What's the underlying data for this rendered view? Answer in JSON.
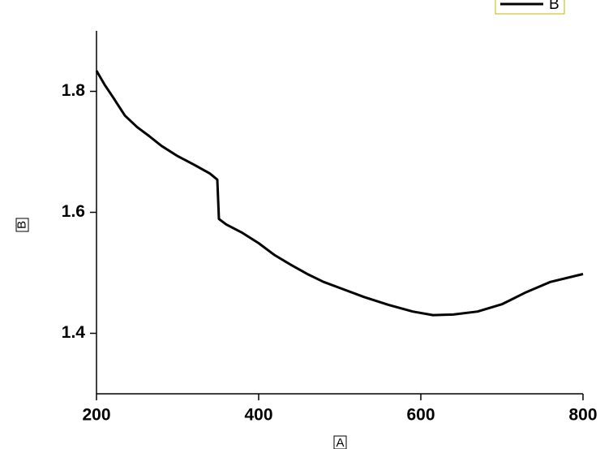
{
  "chart_data": {
    "type": "line",
    "x_label": "A",
    "y_label": "B",
    "x": [
      200,
      210,
      220,
      235,
      250,
      265,
      280,
      300,
      320,
      340,
      349,
      351,
      360,
      380,
      400,
      420,
      440,
      460,
      480,
      500,
      530,
      560,
      590,
      615,
      640,
      670,
      700,
      730,
      760,
      800
    ],
    "series": [
      {
        "name": "B",
        "color": "#000000",
        "values": [
          1.834,
          1.811,
          1.791,
          1.76,
          1.741,
          1.726,
          1.71,
          1.693,
          1.679,
          1.664,
          1.654,
          1.589,
          1.58,
          1.566,
          1.549,
          1.529,
          1.513,
          1.498,
          1.485,
          1.475,
          1.46,
          1.447,
          1.436,
          1.43,
          1.431,
          1.436,
          1.448,
          1.468,
          1.485,
          1.498
        ]
      }
    ],
    "xlim": [
      200,
      800
    ],
    "ylim": [
      1.3,
      1.9
    ],
    "xticks": [
      200,
      400,
      600,
      800
    ],
    "yticks": [
      1.4,
      1.6,
      1.8
    ],
    "legend": "top-right"
  }
}
